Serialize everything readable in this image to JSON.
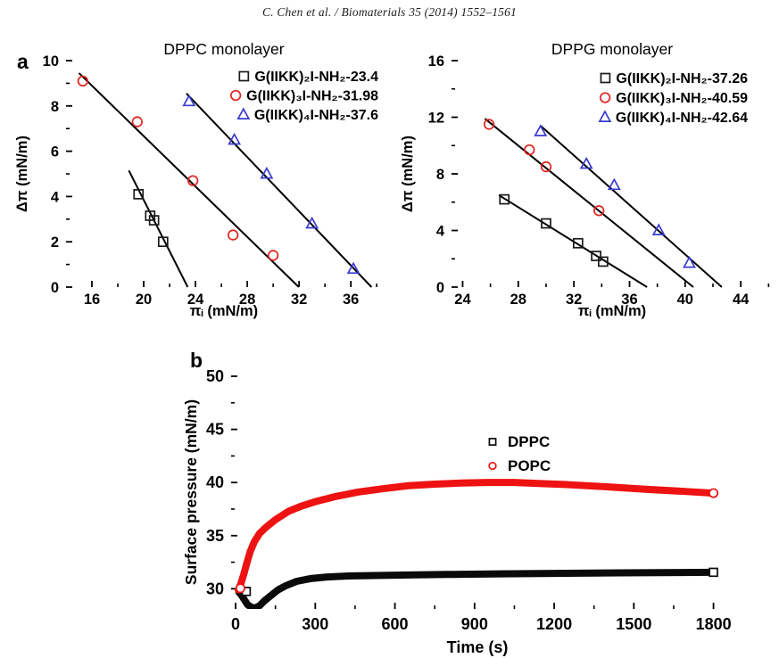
{
  "header": {
    "text": "C. Chen et al. / Biomaterials 35 (2014) 1552–1561"
  },
  "panels": {
    "a_label": "a",
    "b_label": "b"
  },
  "colors": {
    "black": "#111111",
    "red": "#e0241f",
    "blue": "#3a3ad0",
    "bright_red": "#ee1212"
  },
  "chart_data": [
    {
      "id": "dppc-monolayer",
      "type": "scatter",
      "title": "DPPC monolayer",
      "xlabel": "πᵢ (mN/m)",
      "ylabel": "Δπ (mN/m)",
      "xlim": [
        14,
        38.4
      ],
      "ylim": [
        0,
        10
      ],
      "xticks": [
        16,
        20,
        24,
        28,
        32,
        36
      ],
      "xminorticks": [
        18,
        22,
        26,
        30,
        34,
        38
      ],
      "yticks": [
        0,
        2,
        4,
        6,
        8,
        10
      ],
      "yminorticks": [
        1,
        3,
        5,
        7,
        9
      ],
      "grid": false,
      "legend_position": "top-right",
      "series": [
        {
          "label": "G(IIKK)₂I-NH₂-23.4",
          "marker": "square",
          "color": "#1a1a1a",
          "x_intercept": 23.4,
          "points": [
            [
              19.6,
              4.1
            ],
            [
              20.5,
              3.15
            ],
            [
              20.8,
              2.95
            ],
            [
              21.5,
              2.0
            ]
          ],
          "fit_line": [
            [
              18.85,
              5.15
            ],
            [
              23.4,
              0
            ]
          ]
        },
        {
          "label": "G(IIKK)₃I-NH₂-31.98",
          "marker": "circle",
          "color": "#e0241f",
          "x_intercept": 31.98,
          "points": [
            [
              15.3,
              9.1
            ],
            [
              19.5,
              7.3
            ],
            [
              23.8,
              4.7
            ],
            [
              26.9,
              2.3
            ],
            [
              30,
              1.4
            ]
          ],
          "fit_line": [
            [
              15.0,
              9.45
            ],
            [
              31.98,
              0
            ]
          ]
        },
        {
          "label": "G(IIKK)₄I-NH₂-37.6",
          "marker": "triangle",
          "color": "#3a3ad0",
          "x_intercept": 37.6,
          "points": [
            [
              23.5,
              8.2
            ],
            [
              27,
              6.5
            ],
            [
              29.5,
              5.0
            ],
            [
              33,
              2.8
            ],
            [
              36.2,
              0.8
            ]
          ],
          "fit_line": [
            [
              23.3,
              8.55
            ],
            [
              37.6,
              0
            ]
          ]
        }
      ]
    },
    {
      "id": "dppg-monolayer",
      "type": "scatter",
      "title": "DPPG monolayer",
      "xlabel": "πᵢ (mN/m)",
      "ylabel": "Δπ (mN/m)",
      "xlim": [
        23.2,
        46.3
      ],
      "ylim": [
        0,
        16
      ],
      "xticks": [
        24,
        28,
        32,
        36,
        40,
        44
      ],
      "xminorticks": [
        26,
        30,
        34,
        38,
        42,
        46
      ],
      "yticks": [
        0,
        4,
        8,
        12,
        16
      ],
      "yminorticks": [
        2,
        6,
        10,
        14
      ],
      "grid": false,
      "legend_position": "top-right",
      "series": [
        {
          "label": "G(IIKK)₂I-NH₂-37.26",
          "marker": "square",
          "color": "#1a1a1a",
          "x_intercept": 37.26,
          "points": [
            [
              27.0,
              6.2
            ],
            [
              30.0,
              4.5
            ],
            [
              32.3,
              3.1
            ],
            [
              33.6,
              2.2
            ],
            [
              34.1,
              1.8
            ]
          ],
          "fit_line": [
            [
              26.6,
              6.5
            ],
            [
              37.26,
              0
            ]
          ]
        },
        {
          "label": "G(IIKK)₃I-NH₂-40.59",
          "marker": "circle",
          "color": "#e0241f",
          "x_intercept": 40.59,
          "points": [
            [
              25.9,
              11.5
            ],
            [
              28.8,
              9.7
            ],
            [
              30.0,
              8.5
            ],
            [
              33.8,
              5.4
            ]
          ],
          "fit_line": [
            [
              25.6,
              11.9
            ],
            [
              40.59,
              0
            ]
          ]
        },
        {
          "label": "G(IIKK)₄I-NH₂-42.64",
          "marker": "triangle",
          "color": "#3a3ad0",
          "x_intercept": 42.64,
          "points": [
            [
              29.6,
              11.0
            ],
            [
              32.9,
              8.7
            ],
            [
              34.9,
              7.2
            ],
            [
              38.1,
              4.0
            ],
            [
              40.3,
              1.7
            ]
          ],
          "fit_line": [
            [
              29.6,
              11.4
            ],
            [
              42.64,
              0
            ]
          ]
        }
      ]
    },
    {
      "id": "adsorption-kinetics",
      "type": "line",
      "title": "",
      "xlabel": "Time (s)",
      "ylabel": "Surface pressure (mN/m)",
      "xlim": [
        -17,
        1835
      ],
      "ylim": [
        28.1,
        50
      ],
      "xticks": [
        0,
        300,
        600,
        900,
        1200,
        1500,
        1800
      ],
      "xminorticks": [
        150,
        450,
        750,
        1050,
        1350,
        1650
      ],
      "yticks": [
        30,
        35,
        40,
        45,
        50
      ],
      "yminorticks": [
        32.5,
        37.5,
        42.5,
        47.5
      ],
      "grid": false,
      "legend_position": "right-middle",
      "series": [
        {
          "label": "DPPC",
          "marker": "square",
          "color": "#0a0a0a",
          "curve_width": 8,
          "curve": [
            [
              12,
              29.7
            ],
            [
              22,
              29.4
            ],
            [
              32,
              29.0
            ],
            [
              45,
              28.5
            ],
            [
              60,
              28.25
            ],
            [
              75,
              28.2
            ],
            [
              90,
              28.4
            ],
            [
              110,
              28.9
            ],
            [
              135,
              29.4
            ],
            [
              160,
              29.9
            ],
            [
              190,
              30.3
            ],
            [
              230,
              30.7
            ],
            [
              280,
              30.95
            ],
            [
              340,
              31.1
            ],
            [
              420,
              31.2
            ],
            [
              520,
              31.25
            ],
            [
              650,
              31.3
            ],
            [
              800,
              31.35
            ],
            [
              1000,
              31.4
            ],
            [
              1200,
              31.45
            ],
            [
              1450,
              31.5
            ],
            [
              1800,
              31.55
            ]
          ],
          "open_markers": [
            [
              40,
              29.75
            ],
            [
              1800,
              31.55
            ]
          ]
        },
        {
          "label": "POPC",
          "marker": "circle",
          "color": "#ee1212",
          "curve_width": 8,
          "curve": [
            [
              10,
              29.9
            ],
            [
              20,
              30.5
            ],
            [
              30,
              31.3
            ],
            [
              42,
              32.4
            ],
            [
              55,
              33.5
            ],
            [
              70,
              34.4
            ],
            [
              90,
              35.2
            ],
            [
              115,
              35.8
            ],
            [
              150,
              36.5
            ],
            [
              200,
              37.3
            ],
            [
              250,
              37.8
            ],
            [
              300,
              38.2
            ],
            [
              380,
              38.7
            ],
            [
              460,
              39.1
            ],
            [
              550,
              39.4
            ],
            [
              650,
              39.7
            ],
            [
              750,
              39.85
            ],
            [
              850,
              39.95
            ],
            [
              950,
              40.0
            ],
            [
              1050,
              40.0
            ],
            [
              1150,
              39.9
            ],
            [
              1250,
              39.8
            ],
            [
              1400,
              39.6
            ],
            [
              1550,
              39.35
            ],
            [
              1700,
              39.15
            ],
            [
              1800,
              39.0
            ]
          ],
          "open_markers": [
            [
              18,
              30.05
            ],
            [
              1800,
              39.0
            ]
          ]
        }
      ]
    }
  ]
}
